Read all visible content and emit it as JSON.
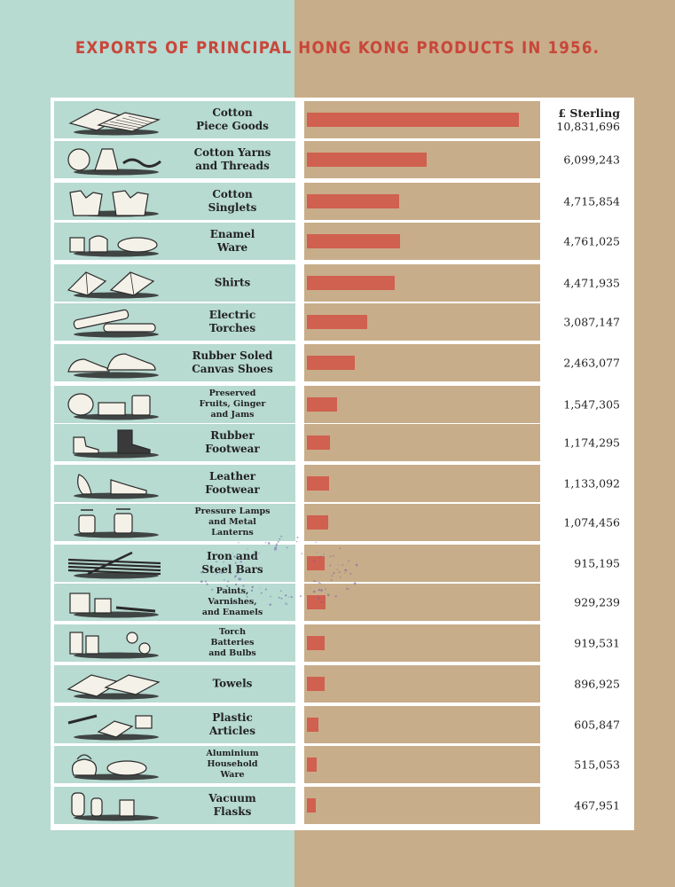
{
  "title": "EXPORTS OF PRINCIPAL HONG KONG PRODUCTS IN 1956.",
  "colors": {
    "left_panel": "#b7dad1",
    "right_panel": "#c8ad8a",
    "bar": "#d0604f",
    "title": "#c8473a"
  },
  "chart_data": {
    "type": "bar",
    "orientation": "horizontal",
    "title": "EXPORTS OF PRINCIPAL HONG KONG PRODUCTS IN 1956.",
    "unit_label": "£ Sterling",
    "grid": false,
    "categories": [
      "Cotton\nPiece Goods",
      "Cotton Yarns\nand Threads",
      "Cotton\nSinglets",
      "Enamel\nWare",
      "Shirts",
      "Electric\nTorches",
      "Rubber Soled\nCanvas Shoes",
      "Preserved\nFruits, Ginger\nand Jams",
      "Rubber\nFootwear",
      "Leather\nFootwear",
      "Pressure Lamps\nand Metal\nLanterns",
      "Iron and\nSteel Bars",
      "Paints,\nVarnishes,\nand Enamels",
      "Torch\nBatteries\nand Bulbs",
      "Towels",
      "Plastic\nArticles",
      "Aluminium\nHousehold\nWare",
      "Vacuum\nFlasks"
    ],
    "values": [
      10831696,
      6099243,
      4715854,
      4761025,
      4471935,
      3087147,
      2463077,
      1547305,
      1174295,
      1133092,
      1074456,
      915195,
      929239,
      919531,
      896925,
      605847,
      515053,
      467951
    ],
    "value_labels": [
      "10,831,696",
      "6,099,243",
      "4,715,854",
      "4,761,025",
      "4,471,935",
      "3,087,147",
      "2,463,077",
      "1,547,305",
      "1,174,295",
      "1,133,092",
      "1,074,456",
      "915,195",
      "929,239",
      "919,531",
      "896,925",
      "605,847",
      "515,053",
      "467,951"
    ],
    "icons": [
      "cloth-bolts-icon",
      "yarn-spools-icon",
      "singlets-icon",
      "enamel-pots-icon",
      "shirts-icon",
      "torches-icon",
      "canvas-shoes-icon",
      "jam-jars-icon",
      "rubber-boots-icon",
      "leather-shoes-icon",
      "lanterns-icon",
      "steel-bars-icon",
      "paint-cans-icon",
      "batteries-bulbs-icon",
      "towels-icon",
      "plastic-articles-icon",
      "aluminium-ware-icon",
      "vacuum-flasks-icon"
    ],
    "xlim": [
      0,
      11500000
    ]
  }
}
